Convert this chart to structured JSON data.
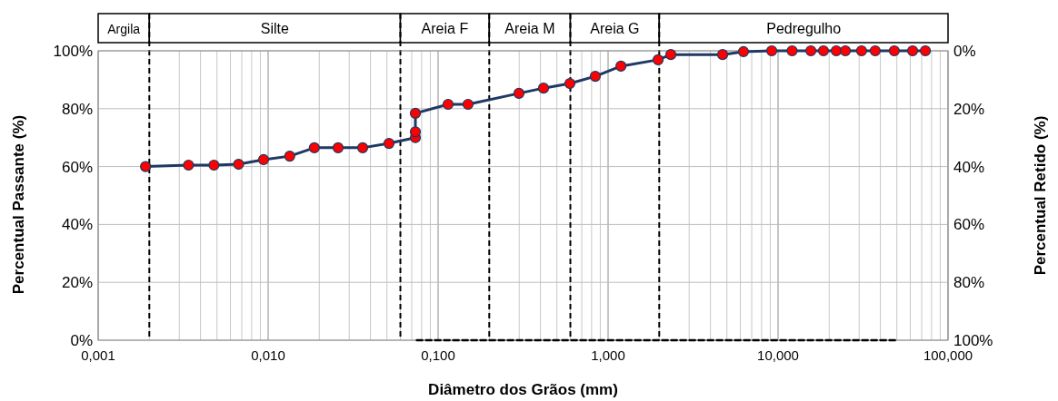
{
  "chart_data": {
    "type": "line",
    "xlabel": "Diâmetro dos Grãos (mm)",
    "ylabel": "Percentual Passante (%)",
    "y2label": "Percentual Retido (%)",
    "log": "x",
    "grid": true,
    "marker": "circle",
    "line_style": "solid",
    "xlim": [
      0.001,
      100
    ],
    "xticks": [
      {
        "value": 0.001,
        "label": "0,001"
      },
      {
        "value": 0.01,
        "label": "0,010"
      },
      {
        "value": 0.1,
        "label": "0,100"
      },
      {
        "value": 1,
        "label": "1,000"
      },
      {
        "value": 10,
        "label": "10,000"
      },
      {
        "value": 100,
        "label": "100,000"
      }
    ],
    "ylim": [
      0,
      100
    ],
    "yticks": [
      {
        "value": 0,
        "label": "0%"
      },
      {
        "value": 20,
        "label": "20%"
      },
      {
        "value": 40,
        "label": "40%"
      },
      {
        "value": 60,
        "label": "60%"
      },
      {
        "value": 80,
        "label": "80%"
      },
      {
        "value": 100,
        "label": "100%"
      }
    ],
    "y2lim": [
      100,
      0
    ],
    "y2ticks": [
      {
        "value": 0,
        "label": "0%"
      },
      {
        "value": 20,
        "label": "20%"
      },
      {
        "value": 40,
        "label": "40%"
      },
      {
        "value": 60,
        "label": "60%"
      },
      {
        "value": 80,
        "label": "80%"
      },
      {
        "value": 100,
        "label": "100%"
      }
    ],
    "series": [
      {
        "color": "#ff0000",
        "x": [
          0.0019,
          0.0034,
          0.0048,
          0.0067,
          0.0094,
          0.0134,
          0.0187,
          0.0258,
          0.036,
          0.0514,
          0.0735,
          0.0735,
          0.0735,
          0.1145,
          0.15,
          0.299,
          0.417,
          0.596,
          0.841,
          1.19,
          1.97,
          2.34,
          4.72,
          6.26,
          9.18,
          12.1,
          15.6,
          18.5,
          22,
          24.9,
          31,
          37.3,
          48.3,
          61.9,
          73.6
        ],
        "values": [
          60,
          60.5,
          60.5,
          60.8,
          62.4,
          63.6,
          66.5,
          66.5,
          66.5,
          68,
          70,
          72,
          78.4,
          81.5,
          81.5,
          85.3,
          87.1,
          88.7,
          91.2,
          94.7,
          96.9,
          98.7,
          98.7,
          99.7,
          100,
          100,
          100,
          100,
          100,
          100,
          100,
          100,
          100,
          100,
          100
        ]
      },
      {
        "type": "line",
        "color": "#000000",
        "line_style": "dashed",
        "marker": "none",
        "x": [
          0.075,
          50
        ],
        "values": [
          0,
          0
        ]
      }
    ],
    "ref_lines": [
      {
        "axis": "x",
        "value": 0.002,
        "line_style": "dashed",
        "color": "#000000"
      },
      {
        "axis": "x",
        "value": 0.06,
        "line_style": "dashed",
        "color": "#000000"
      },
      {
        "axis": "x",
        "value": 0.2,
        "line_style": "dashed",
        "color": "#000000"
      },
      {
        "axis": "x",
        "value": 0.6,
        "line_style": "dashed",
        "color": "#000000"
      },
      {
        "axis": "x",
        "value": 2,
        "line_style": "dashed",
        "color": "#000000"
      }
    ],
    "annotations": [
      "Argila",
      "Silte",
      "Areia F",
      "Areia M",
      "Areia G",
      "Pedregulho"
    ]
  }
}
